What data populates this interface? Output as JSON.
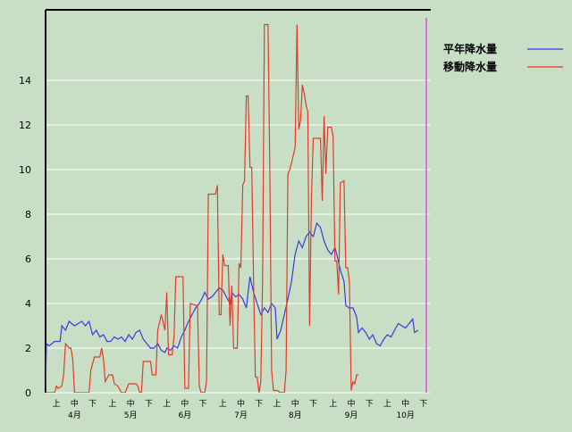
{
  "chart_data": {
    "type": "line",
    "title": "",
    "xlabel": "",
    "ylabel": "",
    "ylim": [
      0,
      16
    ],
    "yticks": [
      0,
      2,
      4,
      6,
      8,
      10,
      12,
      14
    ],
    "grid": "horizontal",
    "legend_position": "top-right",
    "x_range": [
      0,
      213
    ],
    "period_ticks": [
      {
        "x": 6,
        "label": "上"
      },
      {
        "x": 16,
        "label": "中"
      },
      {
        "x": 26,
        "label": "下"
      },
      {
        "x": 37,
        "label": "上"
      },
      {
        "x": 47,
        "label": "中"
      },
      {
        "x": 57,
        "label": "下"
      },
      {
        "x": 67,
        "label": "上"
      },
      {
        "x": 77,
        "label": "中"
      },
      {
        "x": 87,
        "label": "下"
      },
      {
        "x": 98,
        "label": "上"
      },
      {
        "x": 108,
        "label": "中"
      },
      {
        "x": 118,
        "label": "下"
      },
      {
        "x": 128,
        "label": "上"
      },
      {
        "x": 138,
        "label": "中"
      },
      {
        "x": 148,
        "label": "下"
      },
      {
        "x": 159,
        "label": "上"
      },
      {
        "x": 169,
        "label": "中"
      },
      {
        "x": 179,
        "label": "下"
      },
      {
        "x": 189,
        "label": "上"
      },
      {
        "x": 199,
        "label": "中"
      },
      {
        "x": 209,
        "label": "下"
      }
    ],
    "month_labels": [
      {
        "x": 16,
        "label": "4月"
      },
      {
        "x": 47,
        "label": "5月"
      },
      {
        "x": 77,
        "label": "6月"
      },
      {
        "x": 108,
        "label": "7月"
      },
      {
        "x": 138,
        "label": "8月"
      },
      {
        "x": 169,
        "label": "9月"
      },
      {
        "x": 199,
        "label": "10月"
      }
    ],
    "marker_x": 213,
    "series": [
      {
        "name": "平年降水量",
        "color": "#3a3ae0",
        "points": [
          [
            0,
            0
          ],
          [
            0.5,
            2.2
          ],
          [
            2,
            2.1
          ],
          [
            5,
            2.3
          ],
          [
            8,
            2.3
          ],
          [
            9,
            3
          ],
          [
            11,
            2.8
          ],
          [
            13,
            3.2
          ],
          [
            16,
            3
          ],
          [
            18,
            3.1
          ],
          [
            20,
            3.2
          ],
          [
            22,
            3
          ],
          [
            24,
            3.2
          ],
          [
            26,
            2.6
          ],
          [
            28,
            2.8
          ],
          [
            30,
            2.5
          ],
          [
            32,
            2.6
          ],
          [
            34,
            2.3
          ],
          [
            36,
            2.3
          ],
          [
            38,
            2.5
          ],
          [
            40,
            2.4
          ],
          [
            42,
            2.5
          ],
          [
            44,
            2.3
          ],
          [
            46,
            2.6
          ],
          [
            48,
            2.4
          ],
          [
            50,
            2.7
          ],
          [
            52,
            2.8
          ],
          [
            54,
            2.4
          ],
          [
            56,
            2.2
          ],
          [
            58,
            2
          ],
          [
            60,
            2
          ],
          [
            62,
            2.2
          ],
          [
            64,
            1.9
          ],
          [
            66,
            1.8
          ],
          [
            67,
            2
          ],
          [
            69,
            1.9
          ],
          [
            71,
            2.1
          ],
          [
            73,
            2
          ],
          [
            75,
            2.5
          ],
          [
            77,
            2.8
          ],
          [
            79,
            3.2
          ],
          [
            81,
            3.5
          ],
          [
            83,
            3.8
          ],
          [
            85,
            4
          ],
          [
            87,
            4.3
          ],
          [
            88,
            4.5
          ],
          [
            90,
            4.2
          ],
          [
            92,
            4.3
          ],
          [
            94,
            4.5
          ],
          [
            96,
            4.7
          ],
          [
            98,
            4.6
          ],
          [
            100,
            4.3
          ],
          [
            102,
            4
          ],
          [
            103,
            4.5
          ],
          [
            105,
            4.3
          ],
          [
            107,
            4.4
          ],
          [
            109,
            4.2
          ],
          [
            111,
            3.8
          ],
          [
            113,
            5.2
          ],
          [
            115,
            4.5
          ],
          [
            117,
            4
          ],
          [
            119,
            3.5
          ],
          [
            121,
            3.8
          ],
          [
            123,
            3.6
          ],
          [
            125,
            4
          ],
          [
            127,
            3.8
          ],
          [
            128,
            2.4
          ],
          [
            130,
            2.8
          ],
          [
            132,
            3.5
          ],
          [
            134,
            4.2
          ],
          [
            136,
            5
          ],
          [
            138,
            6.2
          ],
          [
            140,
            6.8
          ],
          [
            142,
            6.5
          ],
          [
            144,
            7
          ],
          [
            146,
            7.2
          ],
          [
            148,
            7
          ],
          [
            150,
            7.6
          ],
          [
            152,
            7.4
          ],
          [
            154,
            6.8
          ],
          [
            156,
            6.4
          ],
          [
            158,
            6.2
          ],
          [
            160,
            6.5
          ],
          [
            161,
            6.2
          ],
          [
            163,
            5.5
          ],
          [
            165,
            5
          ],
          [
            166,
            3.9
          ],
          [
            168,
            3.8
          ],
          [
            170,
            3.8
          ],
          [
            172,
            3.4
          ],
          [
            173,
            2.7
          ],
          [
            175,
            2.9
          ],
          [
            177,
            2.7
          ],
          [
            179,
            2.4
          ],
          [
            181,
            2.6
          ],
          [
            183,
            2.2
          ],
          [
            185,
            2.1
          ],
          [
            187,
            2.4
          ],
          [
            189,
            2.6
          ],
          [
            191,
            2.5
          ],
          [
            193,
            2.8
          ],
          [
            195,
            3.1
          ],
          [
            197,
            3
          ],
          [
            199,
            2.9
          ],
          [
            201,
            3.1
          ],
          [
            203,
            3.3
          ],
          [
            204,
            2.7
          ],
          [
            206,
            2.8
          ]
        ]
      },
      {
        "name": "移動降水量",
        "color": "#e03c28",
        "points": [
          [
            0,
            0
          ],
          [
            5,
            0
          ],
          [
            6,
            0.3
          ],
          [
            7,
            0.2
          ],
          [
            9,
            0.3
          ],
          [
            10,
            0.8
          ],
          [
            11,
            2.2
          ],
          [
            13,
            2
          ],
          [
            14,
            2
          ],
          [
            15,
            1.5
          ],
          [
            16,
            0
          ],
          [
            18,
            0
          ],
          [
            22,
            0
          ],
          [
            24,
            0
          ],
          [
            25,
            1
          ],
          [
            27,
            1.6
          ],
          [
            28,
            1.6
          ],
          [
            30,
            1.6
          ],
          [
            31,
            2
          ],
          [
            32,
            1.5
          ],
          [
            33,
            0.5
          ],
          [
            35,
            0.8
          ],
          [
            37,
            0.8
          ],
          [
            38,
            0.4
          ],
          [
            40,
            0.3
          ],
          [
            42,
            0
          ],
          [
            44,
            0
          ],
          [
            46,
            0.4
          ],
          [
            50,
            0.4
          ],
          [
            51,
            0.3
          ],
          [
            52,
            0
          ],
          [
            53,
            0
          ],
          [
            54,
            1.4
          ],
          [
            58,
            1.4
          ],
          [
            59,
            0.8
          ],
          [
            61,
            0.8
          ],
          [
            62,
            2.8
          ],
          [
            64,
            3.5
          ],
          [
            66,
            2.8
          ],
          [
            67,
            4.5
          ],
          [
            68,
            1.7
          ],
          [
            70,
            1.7
          ],
          [
            71,
            2.5
          ],
          [
            72,
            5.2
          ],
          [
            76,
            5.2
          ],
          [
            77,
            0.2
          ],
          [
            79,
            0.2
          ],
          [
            80,
            4
          ],
          [
            84,
            3.9
          ],
          [
            85,
            0.3
          ],
          [
            86,
            0
          ],
          [
            88,
            0
          ],
          [
            89,
            0.5
          ],
          [
            90,
            8.9
          ],
          [
            94,
            8.9
          ],
          [
            95,
            9.3
          ],
          [
            96,
            3.5
          ],
          [
            97,
            3.5
          ],
          [
            98,
            6.2
          ],
          [
            99,
            5.7
          ],
          [
            101,
            5.7
          ],
          [
            102,
            3
          ],
          [
            103,
            4.8
          ],
          [
            104,
            2
          ],
          [
            106,
            2
          ],
          [
            107,
            5.8
          ],
          [
            108,
            5.6
          ],
          [
            109,
            9.3
          ],
          [
            110,
            9.5
          ],
          [
            111,
            13.3
          ],
          [
            112,
            13.3
          ],
          [
            113,
            10.1
          ],
          [
            114,
            10.1
          ],
          [
            115,
            5
          ],
          [
            116,
            0.7
          ],
          [
            117,
            0.7
          ],
          [
            118,
            0
          ],
          [
            119,
            0.5
          ],
          [
            120,
            5
          ],
          [
            121,
            16.5
          ],
          [
            123,
            16.5
          ],
          [
            124,
            10
          ],
          [
            125,
            1
          ],
          [
            126,
            0.1
          ],
          [
            128,
            0.1
          ],
          [
            130,
            0
          ],
          [
            132,
            0
          ],
          [
            133,
            1
          ],
          [
            134,
            9.8
          ],
          [
            135,
            10
          ],
          [
            136,
            10.3
          ],
          [
            138,
            11
          ],
          [
            139,
            16.5
          ],
          [
            140,
            11.8
          ],
          [
            141,
            12.2
          ],
          [
            142,
            13.8
          ],
          [
            143,
            13.4
          ],
          [
            144,
            12.9
          ],
          [
            145,
            12.6
          ],
          [
            146,
            3
          ],
          [
            147,
            8.8
          ],
          [
            148,
            11.4
          ],
          [
            152,
            11.4
          ],
          [
            153,
            8.6
          ],
          [
            154,
            12.4
          ],
          [
            155,
            9.8
          ],
          [
            156,
            11.9
          ],
          [
            158,
            11.9
          ],
          [
            159,
            11.5
          ],
          [
            160,
            5.9
          ],
          [
            161,
            5.9
          ],
          [
            162,
            4.4
          ],
          [
            163,
            9.4
          ],
          [
            165,
            9.5
          ],
          [
            166,
            5.6
          ],
          [
            167,
            5.6
          ],
          [
            168,
            5
          ],
          [
            169,
            0.1
          ],
          [
            170,
            0.5
          ],
          [
            171,
            0.4
          ],
          [
            172,
            0.8
          ],
          [
            173,
            0.8
          ]
        ]
      }
    ]
  }
}
